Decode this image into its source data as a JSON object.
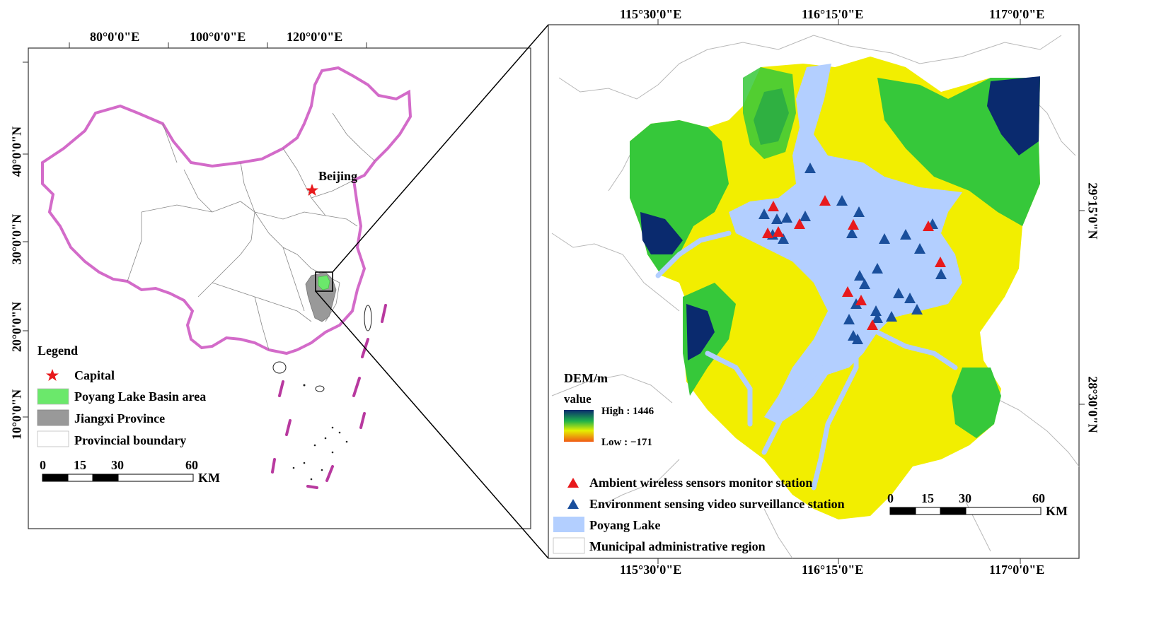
{
  "left_map": {
    "top_ticks": [
      "80°0'0\"E",
      "100°0'0\"E",
      "120°0'0\"E"
    ],
    "left_ticks": [
      "40°0'0\"N",
      "30°0'0\"N",
      "20°0'0\"N",
      "10°0'0\"N"
    ],
    "capital_label": "Beijing",
    "legend": {
      "title": "Legend",
      "items": [
        {
          "label": "Capital",
          "symbol": "star",
          "color": "#e8191c"
        },
        {
          "label": "Poyang Lake Basin area",
          "symbol": "box",
          "color": "#6be86b"
        },
        {
          "label": "Jiangxi Province",
          "symbol": "box",
          "color": "#999999"
        },
        {
          "label": "Provincial boundary",
          "symbol": "box",
          "color": "#ffffff"
        }
      ]
    },
    "scale": {
      "ticks": [
        "0",
        "15",
        "30",
        "60"
      ],
      "unit": "KM"
    }
  },
  "right_map": {
    "top_ticks": [
      "115°30'0\"E",
      "116°15'0\"E",
      "117°0'0\"E"
    ],
    "bottom_ticks": [
      "115°30'0\"E",
      "116°15'0\"E",
      "117°0'0\"E"
    ],
    "right_ticks": [
      "29°15'0\"N",
      "28°30'0\"N"
    ],
    "dem": {
      "title": "DEM/m",
      "subtitle": "value",
      "high": "High : 1446",
      "low": "Low : −171"
    },
    "legend_items": [
      {
        "label": "Ambient wireless sensors monitor station",
        "symbol": "triangle",
        "color": "#e8191c"
      },
      {
        "label": "Environment sensing video surveillance station",
        "symbol": "triangle",
        "color": "#1a4f9c"
      },
      {
        "label": "Poyang Lake",
        "symbol": "box",
        "color": "#b3cfff"
      },
      {
        "label": "Municipal administrative region",
        "symbol": "box",
        "color": "#ffffff"
      }
    ],
    "scale": {
      "ticks": [
        "0",
        "15",
        "30",
        "60"
      ],
      "unit": "KM"
    },
    "colors": {
      "lake": "#b3cfff",
      "low_land": "#f2ee00",
      "mid": "#36c83a",
      "high": "#0a2a6e",
      "red_station": "#e8191c",
      "blue_station": "#1a4f9c"
    }
  }
}
